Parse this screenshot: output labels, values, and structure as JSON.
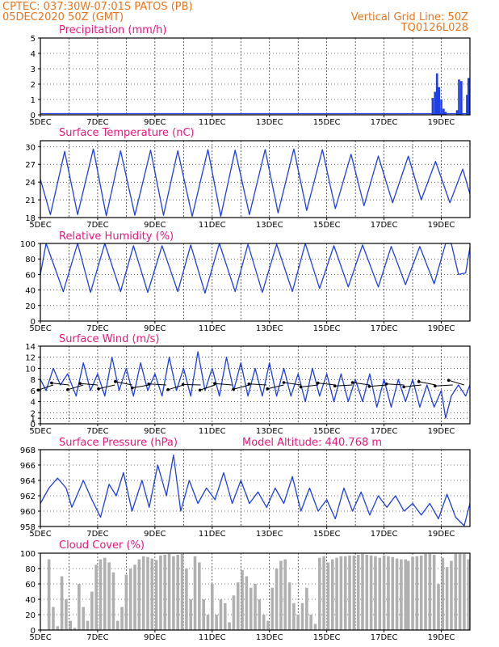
{
  "header": {
    "line1": "CPTEC:  037:30W-07:01S  PATOS (PB)",
    "line2": "05DEC2020 50Z (GMT)",
    "right1": "Vertical Grid Line: 50Z",
    "right2": "TQ0126L028"
  },
  "x_dates": [
    "5DEC",
    "7DEC",
    "9DEC",
    "11DEC",
    "13DEC",
    "15DEC",
    "17DEC",
    "19DEC"
  ],
  "model_altitude": "Model Altitude: 440.768 m",
  "colors": {
    "header": "#e8761c",
    "title": "#e6197d",
    "series": "#1f3fe0",
    "cloud": "#b0b0b0",
    "grid": "#000000"
  },
  "chart_data": [
    {
      "type": "bar",
      "title": "Precipitation (mm/h)",
      "ylim": [
        0,
        5
      ],
      "yticks": [
        0,
        1,
        2,
        3,
        4,
        5
      ],
      "xlim": [
        5,
        20
      ],
      "x": [
        18.7,
        18.78,
        18.85,
        18.92,
        19.0,
        19.08,
        19.15,
        19.55,
        19.62,
        19.7,
        19.9,
        19.95
      ],
      "values": [
        1.1,
        1.5,
        2.7,
        1.8,
        1.0,
        0.4,
        0.2,
        0.3,
        2.3,
        2.2,
        1.3,
        2.4
      ]
    },
    {
      "type": "line",
      "title": "Surface Temperature (nC)",
      "ylim": [
        18,
        31
      ],
      "yticks": [
        18,
        21,
        24,
        27,
        30
      ],
      "xlim": [
        5,
        20
      ],
      "series": [
        {
          "x": [
            5.0,
            5.35,
            5.85,
            6.3,
            6.85,
            7.3,
            7.8,
            8.3,
            8.85,
            9.3,
            9.8,
            10.3,
            10.85,
            11.3,
            11.8,
            12.3,
            12.85,
            13.3,
            13.85,
            14.3,
            14.85,
            15.3,
            15.85,
            16.3,
            16.8,
            17.3,
            17.85,
            18.3,
            18.8,
            19.3,
            19.75,
            20.0
          ],
          "y": [
            24.5,
            18.5,
            29.2,
            18.5,
            29.6,
            18.3,
            29.3,
            18.4,
            29.4,
            18.4,
            29.3,
            18.2,
            29.5,
            18.2,
            29.4,
            18.5,
            29.5,
            18.8,
            29.6,
            19.2,
            29.5,
            19.5,
            28.7,
            20.0,
            28.4,
            20.5,
            28.4,
            21.0,
            27.5,
            20.5,
            26.2,
            22.0
          ]
        }
      ]
    },
    {
      "type": "line",
      "title": "Relative Humidity (%)",
      "ylim": [
        0,
        100
      ],
      "yticks": [
        0,
        20,
        40,
        60,
        80,
        100
      ],
      "xlim": [
        5,
        20
      ],
      "series": [
        {
          "x": [
            5.0,
            5.2,
            5.8,
            6.3,
            6.75,
            7.25,
            7.8,
            8.25,
            8.75,
            9.25,
            9.8,
            10.25,
            10.75,
            11.25,
            11.8,
            12.25,
            12.75,
            13.25,
            13.8,
            14.25,
            14.75,
            15.25,
            15.75,
            16.25,
            16.8,
            17.25,
            17.75,
            18.25,
            18.75,
            19.15,
            19.35,
            19.6,
            19.85,
            20.0
          ],
          "y": [
            60,
            100,
            38,
            100,
            37,
            100,
            38,
            97,
            37,
            97,
            38,
            98,
            36,
            100,
            38,
            99,
            37,
            99,
            38,
            100,
            42,
            97,
            44,
            98,
            44,
            96,
            47,
            96,
            48,
            100,
            100,
            60,
            62,
            95
          ]
        }
      ]
    },
    {
      "type": "line",
      "title": "Surface Wind (m/s)",
      "ylim": [
        0,
        14
      ],
      "yticks": [
        0,
        1,
        2,
        4,
        6,
        8,
        10,
        12,
        14
      ],
      "xlim": [
        5,
        20
      ],
      "series": [
        {
          "x": [
            5.0,
            5.2,
            5.45,
            5.7,
            5.95,
            6.25,
            6.5,
            6.75,
            7.0,
            7.25,
            7.5,
            7.75,
            8.0,
            8.25,
            8.5,
            8.75,
            9.0,
            9.25,
            9.5,
            9.75,
            10.0,
            10.25,
            10.5,
            10.75,
            11.0,
            11.25,
            11.5,
            11.75,
            12.0,
            12.25,
            12.5,
            12.75,
            13.0,
            13.25,
            13.5,
            13.75,
            14.0,
            14.25,
            14.5,
            14.75,
            15.0,
            15.25,
            15.5,
            15.75,
            16.0,
            16.25,
            16.5,
            16.75,
            17.0,
            17.25,
            17.5,
            17.75,
            18.0,
            18.25,
            18.5,
            18.75,
            19.0,
            19.15,
            19.35,
            19.6,
            19.85,
            20.0
          ],
          "y": [
            8,
            6,
            10,
            7,
            9,
            5,
            11,
            6,
            9,
            5,
            12,
            6,
            10,
            5,
            11,
            6,
            9,
            5,
            12,
            6,
            10,
            5,
            13,
            6,
            10,
            5,
            12,
            6,
            11,
            5,
            10,
            5,
            11,
            5,
            10,
            5,
            9,
            4,
            10,
            5,
            9,
            4,
            9,
            4,
            8,
            4,
            9,
            3,
            8,
            3,
            8,
            4,
            8,
            3,
            7,
            3,
            6,
            1,
            5,
            7,
            5,
            7
          ]
        }
      ],
      "barbs": [
        {
          "x": 5.45,
          "dir": -0.55
        },
        {
          "x": 6.0,
          "dir": 0.2
        },
        {
          "x": 6.5,
          "dir": -0.5
        },
        {
          "x": 7.0,
          "dir": 0.15
        },
        {
          "x": 7.6,
          "dir": -0.4
        },
        {
          "x": 8.2,
          "dir": 0.35
        },
        {
          "x": 8.8,
          "dir": -0.3
        },
        {
          "x": 9.4,
          "dir": 0.1
        },
        {
          "x": 10.0,
          "dir": -0.5
        },
        {
          "x": 10.6,
          "dir": 0.05
        },
        {
          "x": 11.1,
          "dir": -0.55
        },
        {
          "x": 11.7,
          "dir": 0.15
        },
        {
          "x": 12.3,
          "dir": -0.45
        },
        {
          "x": 12.9,
          "dir": 0.1
        },
        {
          "x": 13.5,
          "dir": -0.4
        },
        {
          "x": 14.1,
          "dir": 0.25
        },
        {
          "x": 14.7,
          "dir": -0.2
        },
        {
          "x": 15.3,
          "dir": 0.2
        },
        {
          "x": 15.9,
          "dir": -0.1
        },
        {
          "x": 16.5,
          "dir": 0.25
        },
        {
          "x": 17.1,
          "dir": -0.15
        },
        {
          "x": 17.7,
          "dir": 0.1
        },
        {
          "x": 18.3,
          "dir": -0.2
        },
        {
          "x": 18.8,
          "dir": 0.35
        },
        {
          "x": 19.4,
          "dir": -0.1
        },
        {
          "x": 19.8,
          "dir": 0.5
        }
      ]
    },
    {
      "type": "line",
      "title": "Surface Pressure (hPa)",
      "ylim": [
        958,
        968
      ],
      "yticks": [
        958,
        960,
        962,
        964,
        966,
        968
      ],
      "xlim": [
        5,
        20
      ],
      "series": [
        {
          "x": [
            5.0,
            5.3,
            5.6,
            5.9,
            6.1,
            6.5,
            6.8,
            7.1,
            7.4,
            7.65,
            7.9,
            8.2,
            8.55,
            8.8,
            9.1,
            9.4,
            9.65,
            9.9,
            10.2,
            10.5,
            10.8,
            11.1,
            11.4,
            11.7,
            12.0,
            12.3,
            12.6,
            12.9,
            13.2,
            13.5,
            13.8,
            14.1,
            14.4,
            14.7,
            15.0,
            15.3,
            15.6,
            15.9,
            16.2,
            16.5,
            16.8,
            17.1,
            17.4,
            17.7,
            18.0,
            18.3,
            18.6,
            18.9,
            19.2,
            19.5,
            19.8,
            20.0
          ],
          "y": [
            961,
            963,
            964.3,
            963,
            960.5,
            964,
            961.5,
            959.2,
            963.5,
            962,
            965,
            960,
            964,
            960.5,
            966,
            962,
            967.3,
            960,
            964,
            961,
            963,
            961.5,
            965,
            961,
            964,
            961,
            962.5,
            960.5,
            963,
            961,
            964.5,
            960,
            963,
            960,
            961.5,
            959,
            963,
            960,
            962.5,
            959.5,
            962,
            960.5,
            962,
            960,
            961,
            959.5,
            961,
            959,
            962.2,
            959.2,
            958.1,
            961
          ]
        }
      ]
    },
    {
      "type": "bar",
      "title": "Cloud Cover (%)",
      "ylim": [
        0,
        100
      ],
      "yticks": [
        0,
        20,
        40,
        60,
        80,
        100
      ],
      "xlim": [
        5,
        20
      ],
      "x": [
        5.3,
        5.45,
        5.6,
        5.75,
        5.9,
        6.05,
        6.2,
        6.35,
        6.5,
        6.65,
        6.8,
        6.95,
        7.1,
        7.25,
        7.4,
        7.55,
        7.7,
        7.85,
        8.0,
        8.15,
        8.3,
        8.45,
        8.6,
        8.75,
        8.9,
        9.05,
        9.2,
        9.35,
        9.5,
        9.65,
        9.8,
        9.95,
        10.1,
        10.25,
        10.4,
        10.55,
        10.7,
        10.85,
        11.0,
        11.15,
        11.3,
        11.45,
        11.6,
        11.75,
        11.9,
        12.05,
        12.2,
        12.35,
        12.5,
        12.65,
        12.8,
        12.95,
        13.1,
        13.25,
        13.4,
        13.55,
        13.7,
        13.85,
        14.0,
        14.15,
        14.3,
        14.45,
        14.6,
        14.75,
        14.9,
        15.05,
        15.2,
        15.35,
        15.5,
        15.65,
        15.8,
        15.95,
        16.1,
        16.25,
        16.4,
        16.55,
        16.7,
        16.85,
        17.0,
        17.15,
        17.3,
        17.45,
        17.6,
        17.75,
        17.85,
        18.0,
        18.15,
        18.3,
        18.45,
        18.6,
        18.75,
        18.9,
        19.05,
        19.2,
        19.35,
        19.5,
        19.65,
        19.8,
        19.95
      ],
      "values": [
        92,
        30,
        5,
        70,
        40,
        12,
        3,
        60,
        30,
        12,
        50,
        85,
        92,
        94,
        88,
        75,
        12,
        30,
        72,
        80,
        85,
        92,
        96,
        95,
        93,
        91,
        97,
        98,
        99,
        96,
        98,
        99,
        80,
        40,
        96,
        88,
        40,
        20,
        60,
        20,
        40,
        35,
        10,
        45,
        62,
        78,
        70,
        55,
        60,
        40,
        20,
        12,
        55,
        80,
        90,
        92,
        62,
        35,
        20,
        35,
        55,
        20,
        8,
        94,
        96,
        88,
        92,
        94,
        96,
        96,
        97,
        97,
        98,
        99,
        98,
        97,
        96,
        94,
        97,
        96,
        95,
        93,
        92,
        92,
        90,
        95,
        96,
        97,
        99,
        99,
        98,
        60,
        94,
        82,
        90,
        99,
        99,
        99,
        92
      ]
    }
  ]
}
